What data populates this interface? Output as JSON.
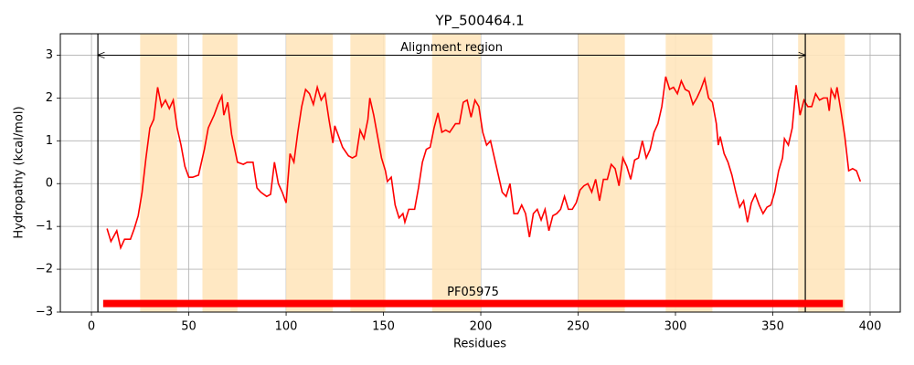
{
  "chart_data": {
    "type": "line",
    "title": "YP_500464.1",
    "xlabel": "Residues",
    "ylabel": "Hydropathy (kcal/mol)",
    "color": "#ff0000",
    "x": [
      8,
      10,
      13,
      15,
      17,
      20,
      22,
      24,
      26,
      28,
      30,
      32,
      34,
      36,
      38,
      40,
      42,
      44,
      46,
      48,
      50,
      52,
      55,
      58,
      60,
      63,
      65,
      67,
      68,
      70,
      72,
      75,
      78,
      80,
      83,
      85,
      87,
      90,
      92,
      94,
      96,
      98,
      100,
      102,
      104,
      106,
      108,
      110,
      112,
      114,
      116,
      118,
      120,
      122,
      124,
      125,
      127,
      129,
      132,
      134,
      136,
      138,
      140,
      142,
      143,
      145,
      147,
      149,
      151,
      152,
      154,
      156,
      158,
      160,
      161,
      163,
      166,
      168,
      170,
      172,
      174,
      176,
      178,
      180,
      182,
      184,
      187,
      189,
      191,
      193,
      195,
      197,
      199,
      201,
      203,
      205,
      207,
      209,
      211,
      213,
      215,
      217,
      219,
      221,
      223,
      225,
      227,
      229,
      231,
      233,
      235,
      237,
      239,
      241,
      243,
      245,
      247,
      249,
      251,
      253,
      255,
      257,
      259,
      261,
      263,
      265,
      267,
      269,
      271,
      273,
      275,
      277,
      279,
      281,
      283,
      285,
      287,
      289,
      291,
      293,
      295,
      297,
      299,
      301,
      303,
      305,
      307,
      309,
      311,
      313,
      315,
      317,
      319,
      321,
      322,
      323,
      325,
      327,
      329,
      331,
      333,
      335,
      337,
      339,
      341,
      343,
      345,
      347,
      349,
      351,
      353,
      355,
      356,
      358,
      360,
      362,
      364,
      366,
      368,
      370,
      372,
      374,
      376,
      378,
      379,
      380,
      382,
      383,
      385,
      387,
      389,
      391,
      393,
      395
    ],
    "values": [
      -1.05,
      -1.35,
      -1.1,
      -1.5,
      -1.3,
      -1.3,
      -1.05,
      -0.75,
      -0.2,
      0.6,
      1.3,
      1.5,
      2.25,
      1.8,
      1.95,
      1.75,
      1.95,
      1.3,
      0.9,
      0.4,
      0.15,
      0.15,
      0.2,
      0.8,
      1.3,
      1.6,
      1.85,
      2.05,
      1.6,
      1.9,
      1.15,
      0.5,
      0.45,
      0.5,
      0.5,
      -0.1,
      -0.2,
      -0.3,
      -0.25,
      0.5,
      0.0,
      -0.2,
      -0.45,
      0.7,
      0.5,
      1.2,
      1.8,
      2.2,
      2.1,
      1.85,
      2.25,
      1.95,
      2.1,
      1.5,
      0.95,
      1.35,
      1.1,
      0.85,
      0.65,
      0.6,
      0.65,
      1.25,
      1.05,
      1.5,
      2.0,
      1.6,
      1.1,
      0.6,
      0.3,
      0.05,
      0.15,
      -0.5,
      -0.8,
      -0.7,
      -0.9,
      -0.6,
      -0.6,
      -0.1,
      0.5,
      0.8,
      0.85,
      1.3,
      1.65,
      1.2,
      1.25,
      1.2,
      1.4,
      1.4,
      1.9,
      1.95,
      1.55,
      1.95,
      1.8,
      1.2,
      0.9,
      1.0,
      0.6,
      0.2,
      -0.2,
      -0.3,
      0.0,
      -0.7,
      -0.7,
      -0.5,
      -0.7,
      -1.25,
      -0.7,
      -0.6,
      -0.85,
      -0.6,
      -1.1,
      -0.75,
      -0.7,
      -0.6,
      -0.3,
      -0.6,
      -0.6,
      -0.45,
      -0.15,
      -0.05,
      0.0,
      -0.2,
      0.1,
      -0.4,
      0.1,
      0.1,
      0.45,
      0.35,
      -0.05,
      0.6,
      0.4,
      0.1,
      0.55,
      0.6,
      1.0,
      0.6,
      0.8,
      1.2,
      1.4,
      1.8,
      2.5,
      2.2,
      2.25,
      2.1,
      2.4,
      2.2,
      2.15,
      1.85,
      2.0,
      2.2,
      2.45,
      2.0,
      1.9,
      1.4,
      0.9,
      1.1,
      0.7,
      0.5,
      0.2,
      -0.2,
      -0.55,
      -0.4,
      -0.9,
      -0.45,
      -0.25,
      -0.5,
      -0.7,
      -0.55,
      -0.5,
      -0.2,
      0.3,
      0.6,
      1.05,
      0.9,
      1.3,
      2.3,
      1.6,
      1.95,
      1.8,
      1.8,
      2.1,
      1.95,
      2.0,
      2.0,
      1.7,
      2.2,
      2.0,
      2.25,
      1.7,
      1.1,
      0.3,
      0.35,
      0.3,
      0.05
    ],
    "xlim": [
      -16,
      415.5
    ],
    "ylim": [
      -3,
      3.5
    ],
    "xticks": [
      0,
      50,
      100,
      150,
      200,
      250,
      300,
      350,
      400
    ],
    "yticks": [
      {
        "value": -3,
        "label": "−3"
      },
      {
        "value": -2,
        "label": "−2"
      },
      {
        "value": -1,
        "label": "−1"
      },
      0,
      1,
      2,
      3
    ],
    "grid": true,
    "regions": [
      [
        25,
        44
      ],
      [
        57,
        75
      ],
      [
        100,
        124
      ],
      [
        133,
        151
      ],
      [
        175,
        200
      ],
      [
        250,
        274
      ],
      [
        295,
        319
      ],
      [
        363,
        387
      ]
    ],
    "region_color": "#ffe5bd",
    "vlines": [
      3.3,
      366.7
    ],
    "annotation": {
      "text": "Alignment region",
      "x": [
        3,
        367
      ],
      "y": 3
    },
    "domain": {
      "label": "PF05975",
      "start": 6,
      "end": 386,
      "y": -2.8,
      "color": "#ff0000"
    }
  }
}
